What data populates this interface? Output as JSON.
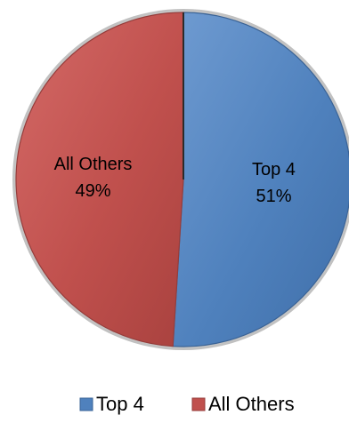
{
  "chart_data": {
    "type": "pie",
    "title": "",
    "slices": [
      {
        "label": "Top 4",
        "value": 51,
        "display": "51%",
        "color": "#4F81BD",
        "edge": "#3A6396"
      },
      {
        "label": "All Others",
        "value": 49,
        "display": "49%",
        "color": "#C0504D",
        "edge": "#963D3B"
      }
    ],
    "start_angle_deg": 0,
    "direction": "clockwise",
    "data_labels": "inside",
    "legend": {
      "position": "bottom",
      "entries": [
        "Top 4",
        "All Others"
      ]
    }
  }
}
